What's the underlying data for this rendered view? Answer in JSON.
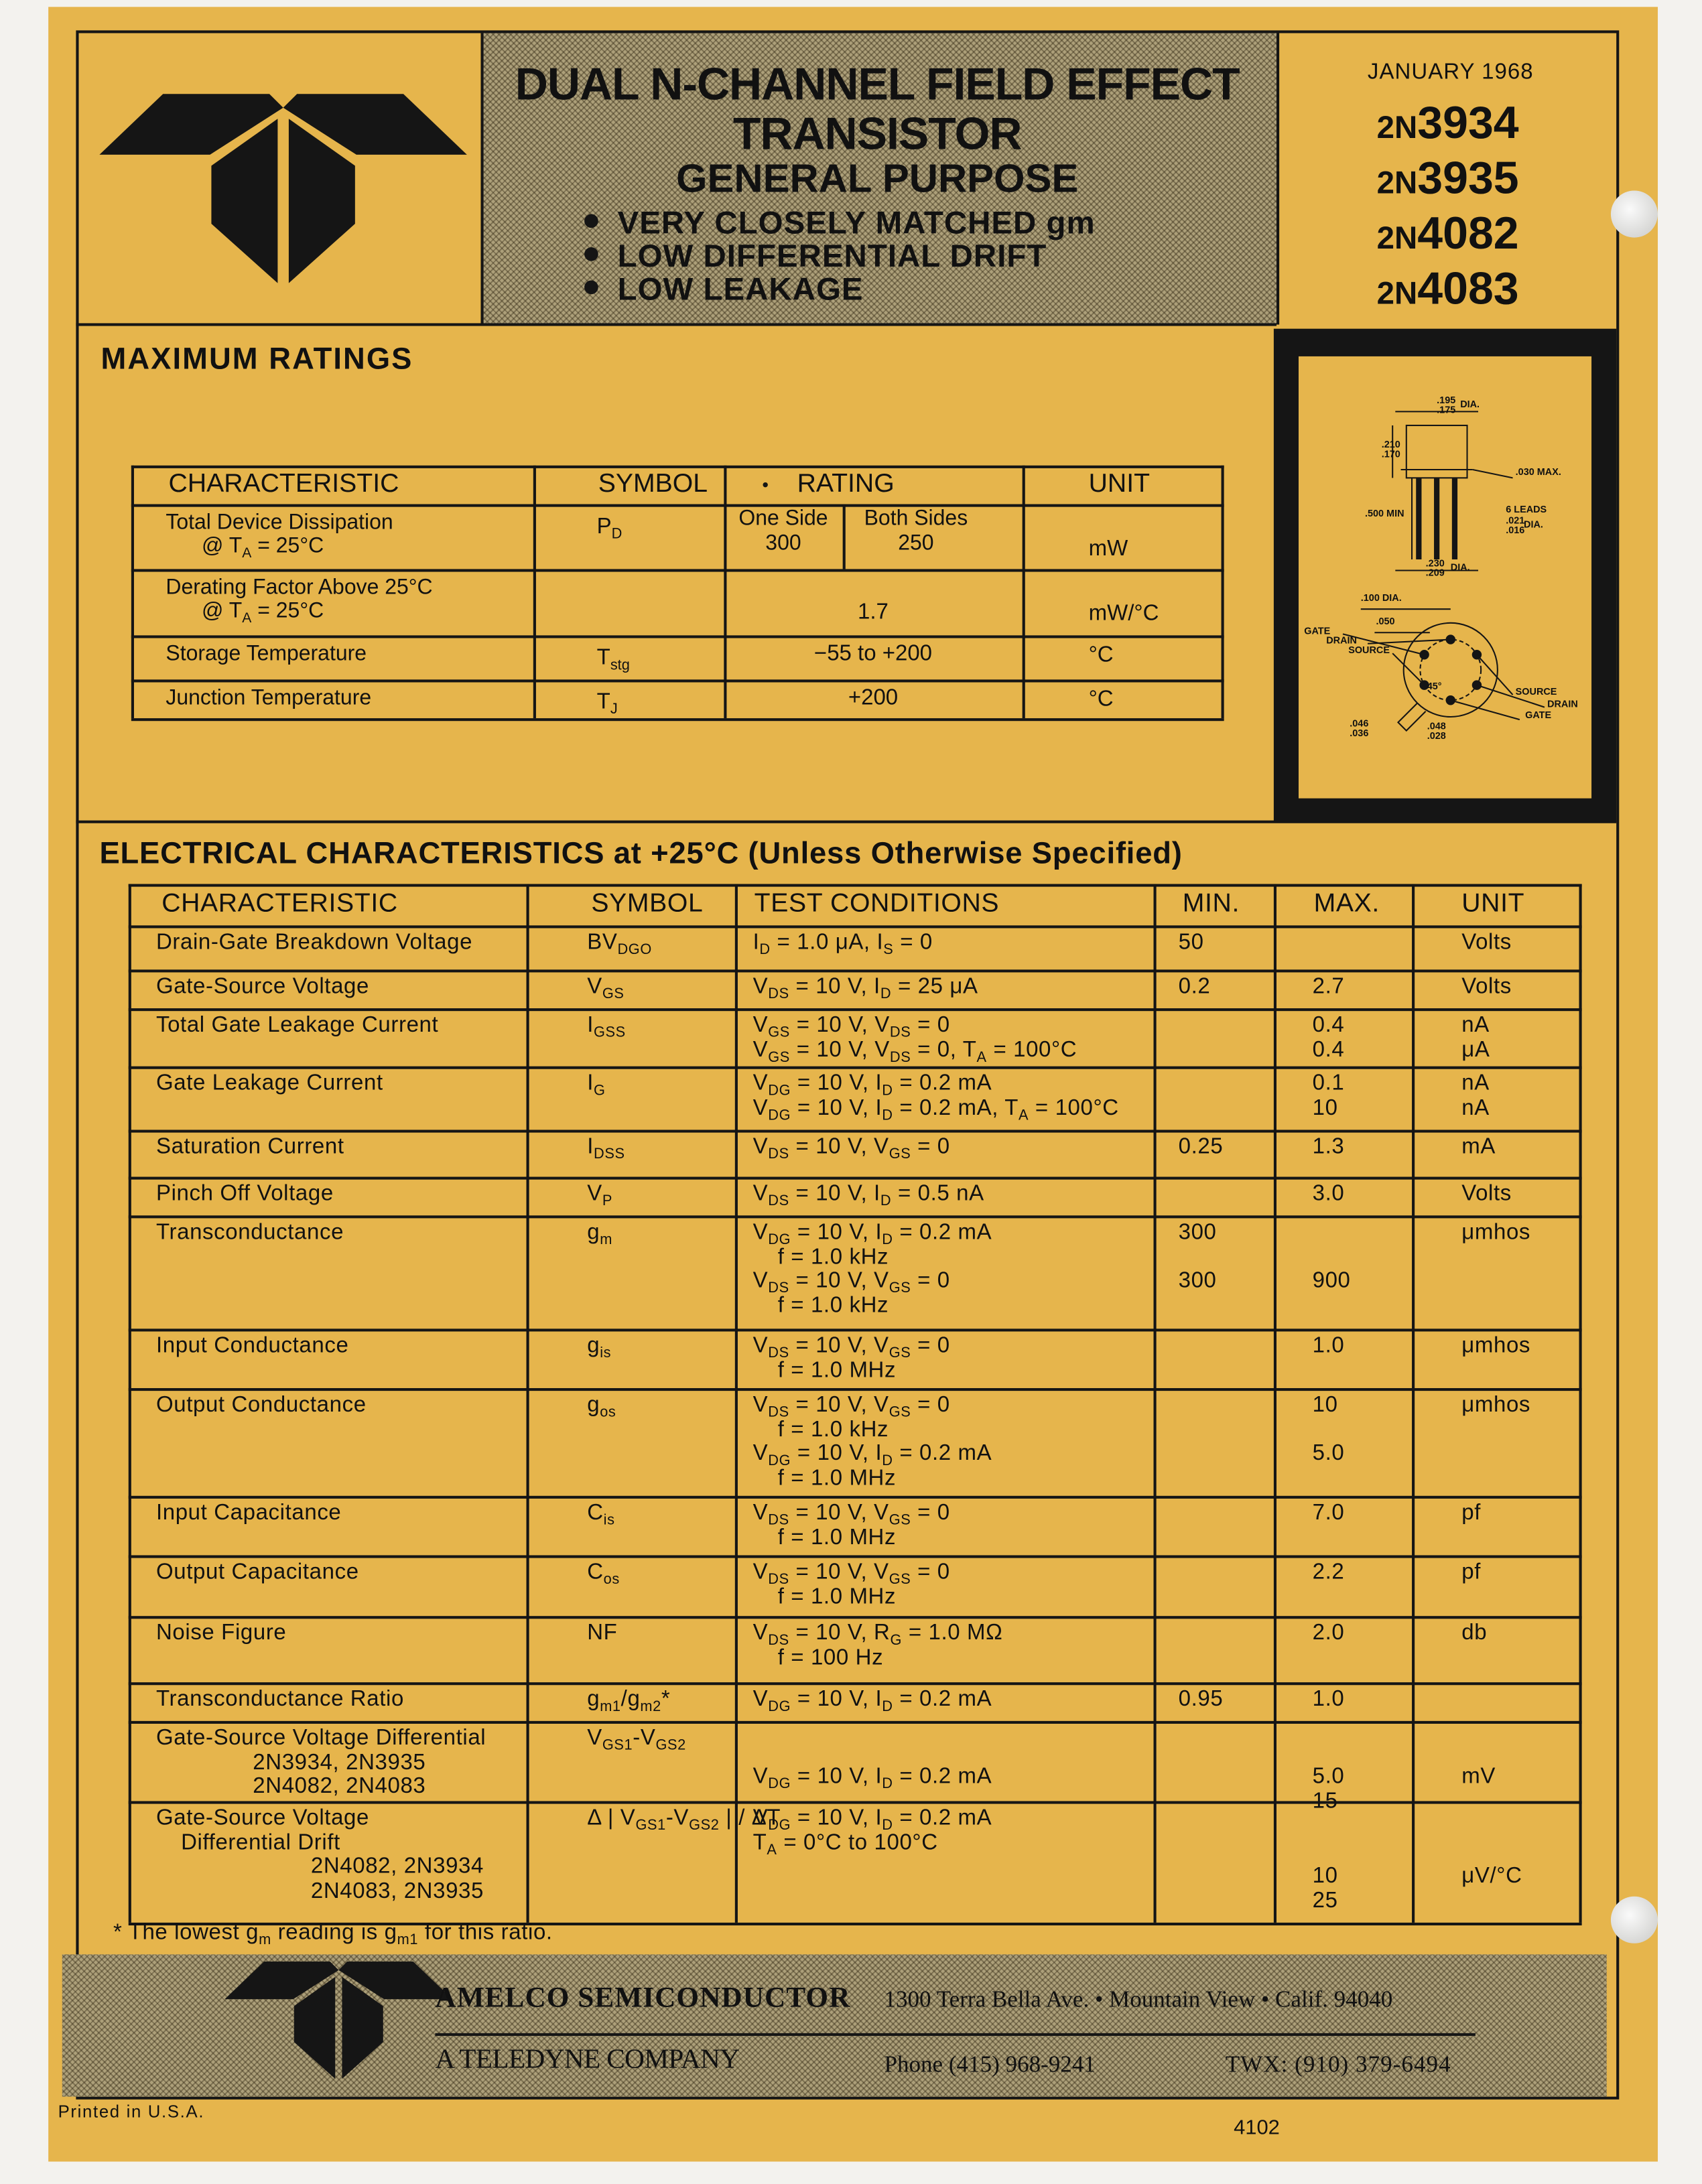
{
  "header": {
    "title_lines": [
      "DUAL N-CHANNEL FIELD EFFECT",
      "TRANSISTOR"
    ],
    "subtitle": "GENERAL PURPOSE",
    "features": [
      "VERY CLOSELY MATCHED gm",
      "LOW DIFFERENTIAL DRIFT",
      "LOW LEAKAGE"
    ],
    "date": "JANUARY 1968",
    "part_numbers": [
      {
        "prefix": "2N",
        "number": "3934"
      },
      {
        "prefix": "2N",
        "number": "3935"
      },
      {
        "prefix": "2N",
        "number": "4082"
      },
      {
        "prefix": "2N",
        "number": "4083"
      }
    ]
  },
  "max_ratings": {
    "title": "MAXIMUM RATINGS",
    "columns": [
      "CHARACTERISTIC",
      "SYMBOL",
      "RATING",
      "UNIT"
    ],
    "rows": [
      {
        "characteristic": [
          "Total Device Dissipation",
          [
            "@ T",
            {
              "sub": "A"
            },
            " = 25°C"
          ]
        ],
        "symbol": [
          "P",
          {
            "sub": "D"
          }
        ],
        "rating": {
          "one_side_label": "One Side",
          "one_side": "300",
          "both_sides_label": "Both Sides",
          "both_sides": "250"
        },
        "unit": "mW"
      },
      {
        "characteristic": [
          "Derating Factor Above 25°C",
          [
            "@ T",
            {
              "sub": "A"
            },
            " = 25°C"
          ]
        ],
        "rating": "1.7",
        "unit": "mW/°C"
      },
      {
        "characteristic": [
          "Storage Temperature"
        ],
        "symbol": [
          "T",
          {
            "sub": "stg"
          }
        ],
        "rating": "−55 to +200",
        "unit": "°C"
      },
      {
        "characteristic": [
          "Junction Temperature"
        ],
        "symbol": [
          "T",
          {
            "sub": "J"
          }
        ],
        "rating": "+200",
        "unit": "°C"
      }
    ]
  },
  "package": {
    "labels": [
      ".195",
      ".175",
      "DIA.",
      ".210",
      ".170",
      ".030 MAX.",
      ".500 MIN",
      "6 LEADS",
      ".021",
      ".016",
      "DIA.",
      ".230",
      ".209",
      "DIA.",
      ".100 DIA.",
      ".050",
      "GATE",
      "DRAIN",
      "SOURCE",
      "45°",
      "SOURCE",
      "DRAIN",
      "GATE",
      ".046",
      ".036",
      ".048",
      ".028"
    ]
  },
  "electrical": {
    "title": "ELECTRICAL CHARACTERISTICS at +25°C (Unless Otherwise Specified)",
    "columns": [
      "CHARACTERISTIC",
      "SYMBOL",
      "TEST CONDITIONS",
      "MIN.",
      "MAX.",
      "UNIT"
    ],
    "rows": [
      {
        "characteristic": [
          "Drain-Gate Breakdown Voltage"
        ],
        "symbol": [
          "BV",
          {
            "sub": "DGO"
          }
        ],
        "conditions": [
          [
            "I",
            {
              "sub": "D"
            },
            " = 1.0 μA, I",
            {
              "sub": "S"
            },
            " = 0"
          ]
        ],
        "min": [
          "50"
        ],
        "unit": [
          "Volts"
        ]
      },
      {
        "characteristic": [
          "Gate-Source Voltage"
        ],
        "symbol": [
          "V",
          {
            "sub": "GS"
          }
        ],
        "conditions": [
          [
            "V",
            {
              "sub": "DS"
            },
            " = 10 V, I",
            {
              "sub": "D"
            },
            " = 25 μA"
          ]
        ],
        "min": [
          "0.2"
        ],
        "max": [
          "2.7"
        ],
        "unit": [
          "Volts"
        ]
      },
      {
        "characteristic": [
          "Total Gate Leakage Current"
        ],
        "symbol": [
          "I",
          {
            "sub": "GSS"
          }
        ],
        "conditions": [
          [
            "V",
            {
              "sub": "GS"
            },
            " = 10 V, V",
            {
              "sub": "DS"
            },
            " = 0"
          ],
          [
            "V",
            {
              "sub": "GS"
            },
            " = 10 V, V",
            {
              "sub": "DS"
            },
            " = 0, T",
            {
              "sub": "A"
            },
            " = 100°C"
          ]
        ],
        "max": [
          "0.4",
          "0.4"
        ],
        "unit": [
          "nA",
          "μA"
        ]
      },
      {
        "characteristic": [
          "Gate Leakage Current"
        ],
        "symbol": [
          "I",
          {
            "sub": "G"
          }
        ],
        "conditions": [
          [
            "V",
            {
              "sub": "DG"
            },
            " = 10 V, I",
            {
              "sub": "D"
            },
            " = 0.2 mA"
          ],
          [
            "V",
            {
              "sub": "DG"
            },
            " = 10 V, I",
            {
              "sub": "D"
            },
            " = 0.2 mA, T",
            {
              "sub": "A"
            },
            " = 100°C"
          ]
        ],
        "max": [
          "0.1",
          "10"
        ],
        "unit": [
          "nA",
          "nA"
        ]
      },
      {
        "characteristic": [
          "Saturation Current"
        ],
        "symbol": [
          "I",
          {
            "sub": "DSS"
          }
        ],
        "conditions": [
          [
            "V",
            {
              "sub": "DS"
            },
            " = 10 V, V",
            {
              "sub": "GS"
            },
            " = 0"
          ]
        ],
        "min": [
          "0.25"
        ],
        "max": [
          "1.3"
        ],
        "unit": [
          "mA"
        ]
      },
      {
        "characteristic": [
          "Pinch Off Voltage"
        ],
        "symbol": [
          "V",
          {
            "sub": "P"
          }
        ],
        "conditions": [
          [
            "V",
            {
              "sub": "DS"
            },
            " = 10 V, I",
            {
              "sub": "D"
            },
            " = 0.5 nA"
          ]
        ],
        "max": [
          "3.0"
        ],
        "unit": [
          "Volts"
        ]
      },
      {
        "characteristic": [
          "Transconductance"
        ],
        "symbol": [
          "g",
          {
            "sub": "m"
          }
        ],
        "conditions": [
          [
            "V",
            {
              "sub": "DG"
            },
            " = 10 V, I",
            {
              "sub": "D"
            },
            " = 0.2 mA"
          ],
          "f = 1.0 kHz",
          [
            "V",
            {
              "sub": "DS"
            },
            " = 10 V, V",
            {
              "sub": "GS"
            },
            " = 0"
          ],
          "f = 1.0 kHz"
        ],
        "min": [
          "300",
          "300"
        ],
        "max": [
          "900"
        ],
        "unit": [
          "μmhos"
        ]
      },
      {
        "characteristic": [
          "Input Conductance"
        ],
        "symbol": [
          "g",
          {
            "sub": "is"
          }
        ],
        "conditions": [
          [
            "V",
            {
              "sub": "DS"
            },
            " = 10 V, V",
            {
              "sub": "GS"
            },
            " = 0"
          ],
          "f = 1.0 MHz"
        ],
        "max": [
          "1.0"
        ],
        "unit": [
          "μmhos"
        ]
      },
      {
        "characteristic": [
          "Output Conductance"
        ],
        "symbol": [
          "g",
          {
            "sub": "os"
          }
        ],
        "conditions": [
          [
            "V",
            {
              "sub": "DS"
            },
            " = 10 V, V",
            {
              "sub": "GS"
            },
            " = 0"
          ],
          "f = 1.0 kHz",
          [
            "V",
            {
              "sub": "DG"
            },
            " = 10 V, I",
            {
              "sub": "D"
            },
            " = 0.2 mA"
          ],
          "f = 1.0 MHz"
        ],
        "max": [
          "10",
          "5.0"
        ],
        "unit": [
          "μmhos"
        ]
      },
      {
        "characteristic": [
          "Input Capacitance"
        ],
        "symbol": [
          "C",
          {
            "sub": "is"
          }
        ],
        "conditions": [
          [
            "V",
            {
              "sub": "DS"
            },
            " = 10 V, V",
            {
              "sub": "GS"
            },
            " = 0"
          ],
          "f = 1.0 MHz"
        ],
        "max": [
          "7.0"
        ],
        "unit": [
          "pf"
        ]
      },
      {
        "characteristic": [
          "Output Capacitance"
        ],
        "symbol": [
          "C",
          {
            "sub": "os"
          }
        ],
        "conditions": [
          [
            "V",
            {
              "sub": "DS"
            },
            " = 10 V, V",
            {
              "sub": "GS"
            },
            " = 0"
          ],
          "f = 1.0 MHz"
        ],
        "max": [
          "2.2"
        ],
        "unit": [
          "pf"
        ]
      },
      {
        "characteristic": [
          "Noise Figure"
        ],
        "symbol": "NF",
        "conditions": [
          [
            "V",
            {
              "sub": "DS"
            },
            " = 10 V, R",
            {
              "sub": "G"
            },
            " = 1.0 MΩ"
          ],
          "f = 100 Hz"
        ],
        "max": [
          "2.0"
        ],
        "unit": [
          "db"
        ]
      },
      {
        "characteristic": [
          "Transconductance Ratio"
        ],
        "symbol": [
          "g",
          {
            "sub": "m1"
          },
          "/g",
          {
            "sub": "m2"
          },
          "*"
        ],
        "conditions": [
          [
            "V",
            {
              "sub": "DG"
            },
            " = 10 V, I",
            {
              "sub": "D"
            },
            " = 0.2 mA"
          ]
        ],
        "min": [
          "0.95"
        ],
        "max": [
          "1.0"
        ]
      },
      {
        "characteristic": [
          "Gate-Source Voltage Differential",
          "2N3934, 2N3935",
          "2N4082, 2N4083"
        ],
        "symbol": [
          "V",
          {
            "sub": "GS1"
          },
          "-V",
          {
            "sub": "GS2"
          }
        ],
        "conditions": [
          [
            "V",
            {
              "sub": "DG"
            },
            " = 10 V, I",
            {
              "sub": "D"
            },
            " = 0.2 mA"
          ]
        ],
        "max": [
          "5.0",
          "15"
        ],
        "unit": [
          "mV"
        ]
      },
      {
        "characteristic": [
          "Gate-Source Voltage",
          "Differential Drift",
          "2N4082, 2N3934",
          "2N4083, 2N3935"
        ],
        "symbol": [
          "Δ | V",
          {
            "sub": "GS1"
          },
          "-V",
          {
            "sub": "GS2"
          },
          " | / ΔT"
        ],
        "conditions": [
          [
            "V",
            {
              "sub": "DG"
            },
            " = 10 V, I",
            {
              "sub": "D"
            },
            " = 0.2 mA"
          ],
          [
            "T",
            {
              "sub": "A"
            },
            " = 0°C to 100°C"
          ]
        ],
        "max": [
          "10",
          "25"
        ],
        "unit": [
          "μV/°C"
        ]
      }
    ],
    "footnote": [
      "* The lowest g",
      {
        "sub": "m"
      },
      " reading is g",
      {
        "sub": "m1"
      },
      " for this ratio."
    ]
  },
  "footer": {
    "company": "AMELCO SEMICONDUCTOR",
    "address": "1300 Terra Bella Ave. • Mountain View • Calif. 94040",
    "parent": "A TELEDYNE COMPANY",
    "phone": "Phone (415) 968-9241",
    "twx": "TWX: (910) 379-6494",
    "printed": "Printed in U.S.A.",
    "doc_number": "4102"
  }
}
